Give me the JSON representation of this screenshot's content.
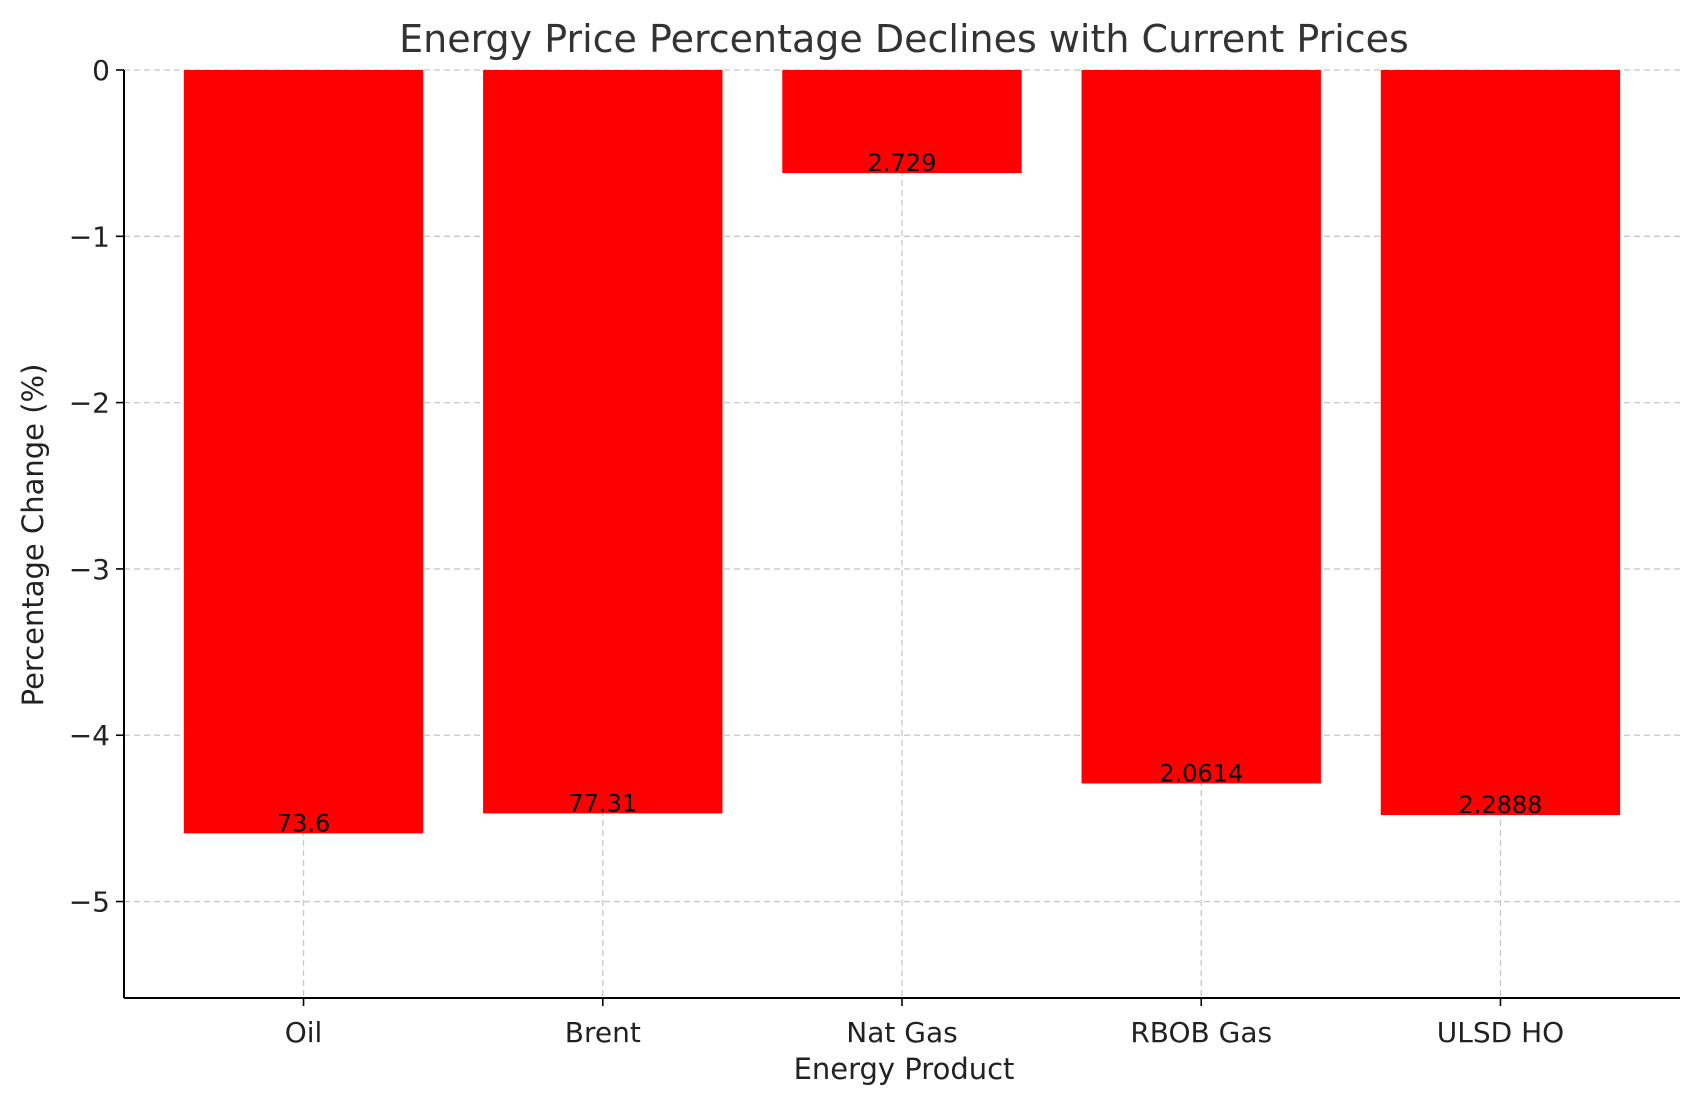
{
  "chart_data": {
    "type": "bar",
    "title": "Energy Price Percentage Declines with Current Prices",
    "xlabel": "Energy Product",
    "ylabel": "Percentage Change (%)",
    "categories": [
      "Oil",
      "Brent",
      "Nat Gas",
      "RBOB Gas",
      "ULSD HO"
    ],
    "values": [
      -4.59,
      -4.47,
      -0.62,
      -4.29,
      -4.48
    ],
    "data_labels": [
      "73.6",
      "77.31",
      "2.729",
      "2.0614",
      "2.2888"
    ],
    "ylim": [
      -5.58,
      0
    ],
    "yticks": [
      0,
      -1,
      -2,
      -3,
      -4,
      -5
    ],
    "ytick_labels": [
      "0",
      "−1",
      "−2",
      "−3",
      "−4",
      "−5"
    ],
    "bar_color": "#ff0000",
    "grid": true,
    "legend": false
  }
}
